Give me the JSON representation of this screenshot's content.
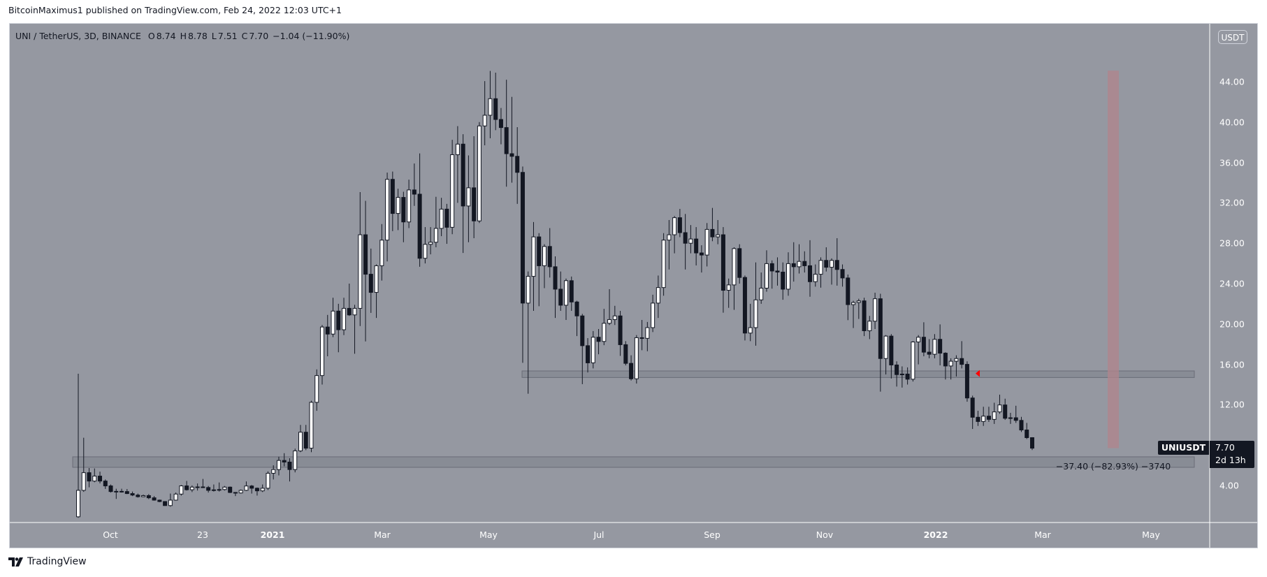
{
  "publish_line": "BitcoinMaximus1 published on TradingView.com, Feb 24, 2022 12:03 UTC+1",
  "legend": {
    "symbol": "UNI / TetherUS, 3D, BINANCE",
    "open_label": "O",
    "open": "8.74",
    "high_label": "H",
    "high": "8.78",
    "low_label": "L",
    "low": "7.51",
    "close_label": "C",
    "close": "7.70",
    "change": "−1.04 (−11.90%)"
  },
  "price_axis": {
    "currency": "USDT",
    "ticks": [
      "44.00",
      "40.00",
      "36.00",
      "32.00",
      "28.00",
      "24.00",
      "20.00",
      "16.00",
      "12.00",
      "4.00"
    ]
  },
  "time_axis": {
    "ticks": [
      {
        "label": "Oct",
        "bold": false
      },
      {
        "label": "23",
        "bold": false
      },
      {
        "label": "2021",
        "bold": true
      },
      {
        "label": "Mar",
        "bold": false
      },
      {
        "label": "May",
        "bold": false
      },
      {
        "label": "Jul",
        "bold": false
      },
      {
        "label": "Sep",
        "bold": false
      },
      {
        "label": "Nov",
        "bold": false
      },
      {
        "label": "2022",
        "bold": true
      },
      {
        "label": "Mar",
        "bold": false
      },
      {
        "label": "May",
        "bold": false
      }
    ]
  },
  "last_price": {
    "symbol": "UNIUSDT",
    "value": "7.70",
    "countdown": "2d 13h"
  },
  "measure": {
    "text": "−37.40 (−82.93%) −3740",
    "from": 45.1,
    "to": 7.7
  },
  "zones": [
    {
      "name": "support-zone-upper",
      "low": 14.7,
      "high": 15.35
    },
    {
      "name": "support-zone-lower",
      "low": 5.8,
      "high": 6.84
    }
  ],
  "footer": {
    "brand": "TradingView"
  },
  "colors": {
    "background": "#9598a1",
    "up_candle": "#ffffff",
    "down_candle": "#131722",
    "zone_fill": "#868993",
    "zone_border": "#6a6d78",
    "measure_bar": "#b2848c",
    "marker": "#ff0000"
  },
  "chart_data": {
    "type": "candlestick",
    "interval": "3D",
    "ylim": [
      0.6,
      50
    ],
    "fields": [
      "open",
      "high",
      "low",
      "close"
    ],
    "candles": [
      [
        0.9,
        15.07,
        0.8,
        3.52
      ],
      [
        3.52,
        8.73,
        3.37,
        5.27
      ],
      [
        5.27,
        5.73,
        3.82,
        4.44
      ],
      [
        4.44,
        5.69,
        4.32,
        4.93
      ],
      [
        4.93,
        5.37,
        4.21,
        4.44
      ],
      [
        4.44,
        4.6,
        3.66,
        3.96
      ],
      [
        3.96,
        4.1,
        3.3,
        3.4
      ],
      [
        3.4,
        3.68,
        2.67,
        3.42
      ],
      [
        3.42,
        3.68,
        3.3,
        3.4
      ],
      [
        3.4,
        3.65,
        3.15,
        3.2
      ],
      [
        3.2,
        3.4,
        2.95,
        3.05
      ],
      [
        3.05,
        3.2,
        2.8,
        2.89
      ],
      [
        2.89,
        3.1,
        2.85,
        3.0
      ],
      [
        3.0,
        3.15,
        2.65,
        2.78
      ],
      [
        2.78,
        2.95,
        2.5,
        2.55
      ],
      [
        2.55,
        2.6,
        2.35,
        2.41
      ],
      [
        2.41,
        2.45,
        1.98,
        2.01
      ],
      [
        2.01,
        3.2,
        1.9,
        2.55
      ],
      [
        2.55,
        3.3,
        2.5,
        3.15
      ],
      [
        3.15,
        4.05,
        3.0,
        3.96
      ],
      [
        3.96,
        4.45,
        3.5,
        3.58
      ],
      [
        3.58,
        4.0,
        3.35,
        3.84
      ],
      [
        3.84,
        4.2,
        3.5,
        3.86
      ],
      [
        3.86,
        4.65,
        3.75,
        3.8
      ],
      [
        3.8,
        3.95,
        3.3,
        3.52
      ],
      [
        3.52,
        4.1,
        3.4,
        3.57
      ],
      [
        3.57,
        4.3,
        3.4,
        3.6
      ],
      [
        3.6,
        3.95,
        3.5,
        3.84
      ],
      [
        3.84,
        3.9,
        3.25,
        3.31
      ],
      [
        3.31,
        3.35,
        2.95,
        3.26
      ],
      [
        3.26,
        3.6,
        3.2,
        3.52
      ],
      [
        3.52,
        4.4,
        3.45,
        3.95
      ],
      [
        3.95,
        4.05,
        3.2,
        3.73
      ],
      [
        3.73,
        3.8,
        3.0,
        3.47
      ],
      [
        3.47,
        4.1,
        3.35,
        3.73
      ],
      [
        3.73,
        5.4,
        3.55,
        5.21
      ],
      [
        5.21,
        6.0,
        4.6,
        5.58
      ],
      [
        5.58,
        6.85,
        5.0,
        6.48
      ],
      [
        6.48,
        7.2,
        5.9,
        6.32
      ],
      [
        6.32,
        6.7,
        4.4,
        5.58
      ],
      [
        5.58,
        7.65,
        5.3,
        7.43
      ],
      [
        7.43,
        10.0,
        7.3,
        9.28
      ],
      [
        9.28,
        10.0,
        7.5,
        7.7
      ],
      [
        7.7,
        12.4,
        7.3,
        12.24
      ],
      [
        12.24,
        15.5,
        11.4,
        14.89
      ],
      [
        14.89,
        19.9,
        14.0,
        19.7
      ],
      [
        19.7,
        20.9,
        16.8,
        19.0
      ],
      [
        19.0,
        22.6,
        18.7,
        21.28
      ],
      [
        21.28,
        22.0,
        17.2,
        19.43
      ],
      [
        19.43,
        22.6,
        18.9,
        21.55
      ],
      [
        21.55,
        24.0,
        20.8,
        20.9
      ],
      [
        20.9,
        21.9,
        17.05,
        21.55
      ],
      [
        21.55,
        33.07,
        19.8,
        28.84
      ],
      [
        28.84,
        32.2,
        18.27,
        24.93
      ],
      [
        24.93,
        27.47,
        21.1,
        23.13
      ],
      [
        23.13,
        25.9,
        20.6,
        25.77
      ],
      [
        25.77,
        29.9,
        24.3,
        28.31
      ],
      [
        28.31,
        35.0,
        26.2,
        34.33
      ],
      [
        34.33,
        35.1,
        29.2,
        30.95
      ],
      [
        30.95,
        33.4,
        29.3,
        32.54
      ],
      [
        32.54,
        33.1,
        28.1,
        30.11
      ],
      [
        30.11,
        34.3,
        29.5,
        33.28
      ],
      [
        33.28,
        35.9,
        31.7,
        32.86
      ],
      [
        32.86,
        36.9,
        25.67,
        26.51
      ],
      [
        26.51,
        29.6,
        26.0,
        27.89
      ],
      [
        27.89,
        29.6,
        26.9,
        28.1
      ],
      [
        28.1,
        32.6,
        27.6,
        29.47
      ],
      [
        29.47,
        32.5,
        28.7,
        31.38
      ],
      [
        31.38,
        31.9,
        27.94,
        29.58
      ],
      [
        29.58,
        38.25,
        28.9,
        36.77
      ],
      [
        36.77,
        39.6,
        32.0,
        37.82
      ],
      [
        37.82,
        38.8,
        27.04,
        31.69
      ],
      [
        31.69,
        36.7,
        28.1,
        33.49
      ],
      [
        33.49,
        38.6,
        28.5,
        30.21
      ],
      [
        30.21,
        40.0,
        30.0,
        39.62
      ],
      [
        39.62,
        44.06,
        37.7,
        40.68
      ],
      [
        40.68,
        45.07,
        38.4,
        42.32
      ],
      [
        42.32,
        44.9,
        39.2,
        40.26
      ],
      [
        40.26,
        41.4,
        37.8,
        39.46
      ],
      [
        39.46,
        44.2,
        33.6,
        36.87
      ],
      [
        36.87,
        42.5,
        34.0,
        36.61
      ],
      [
        36.61,
        39.5,
        31.9,
        35.02
      ],
      [
        35.02,
        35.6,
        16.15,
        22.07
      ],
      [
        22.07,
        25.2,
        13.09,
        24.72
      ],
      [
        24.72,
        30.1,
        21.3,
        28.63
      ],
      [
        28.63,
        29.0,
        21.76,
        25.77
      ],
      [
        25.77,
        27.9,
        23.55,
        27.68
      ],
      [
        27.68,
        29.5,
        24.6,
        25.67
      ],
      [
        25.67,
        26.7,
        20.6,
        23.45
      ],
      [
        23.45,
        25.2,
        21.3,
        21.86
      ],
      [
        21.86,
        24.5,
        20.4,
        24.29
      ],
      [
        24.29,
        24.7,
        21.3,
        22.18
      ],
      [
        22.18,
        22.3,
        18.8,
        20.8
      ],
      [
        20.8,
        21.0,
        14.04,
        17.85
      ],
      [
        17.85,
        18.6,
        15.2,
        16.15
      ],
      [
        16.15,
        19.3,
        15.6,
        18.69
      ],
      [
        18.69,
        19.5,
        17.0,
        18.27
      ],
      [
        18.27,
        21.5,
        17.9,
        20.07
      ],
      [
        20.07,
        23.45,
        19.9,
        20.44
      ],
      [
        20.44,
        21.8,
        19.9,
        20.8
      ],
      [
        20.8,
        21.3,
        16.84,
        17.95
      ],
      [
        17.95,
        18.3,
        15.9,
        16.1
      ],
      [
        16.1,
        16.9,
        14.4,
        14.57
      ],
      [
        14.57,
        18.9,
        14.1,
        18.64
      ],
      [
        18.64,
        20.4,
        17.4,
        18.58
      ],
      [
        18.58,
        20.2,
        17.3,
        19.64
      ],
      [
        19.64,
        22.9,
        19.2,
        22.07
      ],
      [
        22.07,
        24.8,
        20.6,
        23.61
      ],
      [
        23.61,
        29.0,
        22.8,
        28.31
      ],
      [
        28.31,
        30.3,
        25.4,
        28.84
      ],
      [
        28.84,
        30.7,
        27.0,
        30.53
      ],
      [
        30.53,
        31.4,
        28.6,
        29.05
      ],
      [
        29.05,
        30.9,
        25.4,
        28.0
      ],
      [
        28.0,
        29.8,
        27.0,
        28.42
      ],
      [
        28.42,
        29.6,
        25.8,
        27.04
      ],
      [
        27.04,
        27.8,
        25.1,
        26.83
      ],
      [
        26.83,
        30.0,
        25.7,
        29.37
      ],
      [
        29.37,
        31.5,
        28.2,
        28.63
      ],
      [
        28.63,
        30.3,
        27.9,
        28.84
      ],
      [
        28.84,
        29.6,
        21.12,
        23.34
      ],
      [
        23.34,
        24.5,
        21.6,
        23.87
      ],
      [
        23.87,
        27.6,
        21.4,
        27.47
      ],
      [
        27.47,
        27.9,
        24.0,
        24.61
      ],
      [
        24.61,
        24.8,
        18.37,
        19.1
      ],
      [
        19.1,
        22.0,
        18.3,
        19.64
      ],
      [
        19.64,
        26.1,
        17.85,
        22.39
      ],
      [
        22.39,
        25.1,
        22.0,
        23.55
      ],
      [
        23.55,
        27.3,
        23.2,
        25.98
      ],
      [
        25.98,
        26.3,
        23.5,
        25.25
      ],
      [
        25.25,
        26.6,
        23.8,
        25.14
      ],
      [
        25.14,
        26.1,
        22.4,
        23.45
      ],
      [
        23.45,
        27.1,
        22.8,
        25.98
      ],
      [
        25.98,
        28.1,
        24.2,
        25.67
      ],
      [
        25.67,
        27.9,
        25.0,
        26.2
      ],
      [
        26.2,
        27.2,
        25.1,
        25.77
      ],
      [
        25.77,
        28.3,
        22.7,
        24.19
      ],
      [
        24.19,
        25.9,
        23.7,
        24.93
      ],
      [
        24.93,
        26.6,
        23.6,
        26.3
      ],
      [
        26.3,
        27.6,
        25.2,
        25.62
      ],
      [
        25.62,
        26.5,
        23.9,
        26.3
      ],
      [
        26.3,
        28.5,
        23.8,
        25.4
      ],
      [
        25.4,
        25.9,
        23.7,
        24.56
      ],
      [
        24.56,
        24.9,
        20.38,
        21.92
      ],
      [
        21.92,
        22.3,
        19.6,
        22.13
      ],
      [
        22.13,
        22.5,
        20.5,
        22.29
      ],
      [
        22.29,
        22.6,
        18.8,
        19.33
      ],
      [
        19.33,
        20.8,
        18.5,
        20.28
      ],
      [
        20.28,
        23.1,
        19.5,
        22.5
      ],
      [
        22.5,
        23.0,
        13.3,
        16.58
      ],
      [
        16.58,
        18.9,
        15.0,
        18.8
      ],
      [
        18.8,
        19.0,
        14.6,
        15.94
      ],
      [
        15.94,
        16.3,
        13.8,
        14.99
      ],
      [
        14.99,
        15.8,
        13.7,
        15.04
      ],
      [
        15.04,
        15.7,
        14.0,
        14.53
      ],
      [
        14.53,
        18.3,
        14.3,
        18.22
      ],
      [
        18.22,
        18.9,
        16.0,
        18.69
      ],
      [
        18.69,
        20.17,
        16.8,
        17.21
      ],
      [
        17.21,
        18.5,
        16.6,
        17.0
      ],
      [
        17.0,
        19.0,
        16.6,
        18.48
      ],
      [
        18.48,
        19.96,
        15.9,
        17.11
      ],
      [
        17.11,
        17.2,
        14.5,
        15.84
      ],
      [
        15.84,
        16.6,
        14.5,
        16.31
      ],
      [
        16.31,
        16.9,
        14.8,
        16.58
      ],
      [
        16.58,
        18.3,
        15.6,
        16.0
      ],
      [
        16.0,
        16.3,
        12.3,
        12.67
      ],
      [
        12.67,
        12.9,
        9.6,
        10.76
      ],
      [
        10.76,
        11.4,
        9.9,
        10.34
      ],
      [
        10.34,
        11.8,
        9.9,
        10.87
      ],
      [
        10.87,
        11.8,
        10.3,
        10.55
      ],
      [
        10.55,
        12.2,
        10.1,
        11.29
      ],
      [
        11.29,
        13.0,
        11.1,
        11.98
      ],
      [
        11.98,
        12.6,
        10.5,
        10.66
      ],
      [
        10.66,
        11.2,
        10.1,
        10.71
      ],
      [
        10.71,
        11.9,
        10.2,
        10.45
      ],
      [
        10.45,
        10.8,
        9.3,
        9.5
      ],
      [
        9.5,
        10.2,
        8.6,
        8.74
      ],
      [
        8.74,
        8.78,
        7.51,
        7.7
      ]
    ],
    "marker": {
      "type": "triangle-left",
      "price": 15.1
    }
  }
}
